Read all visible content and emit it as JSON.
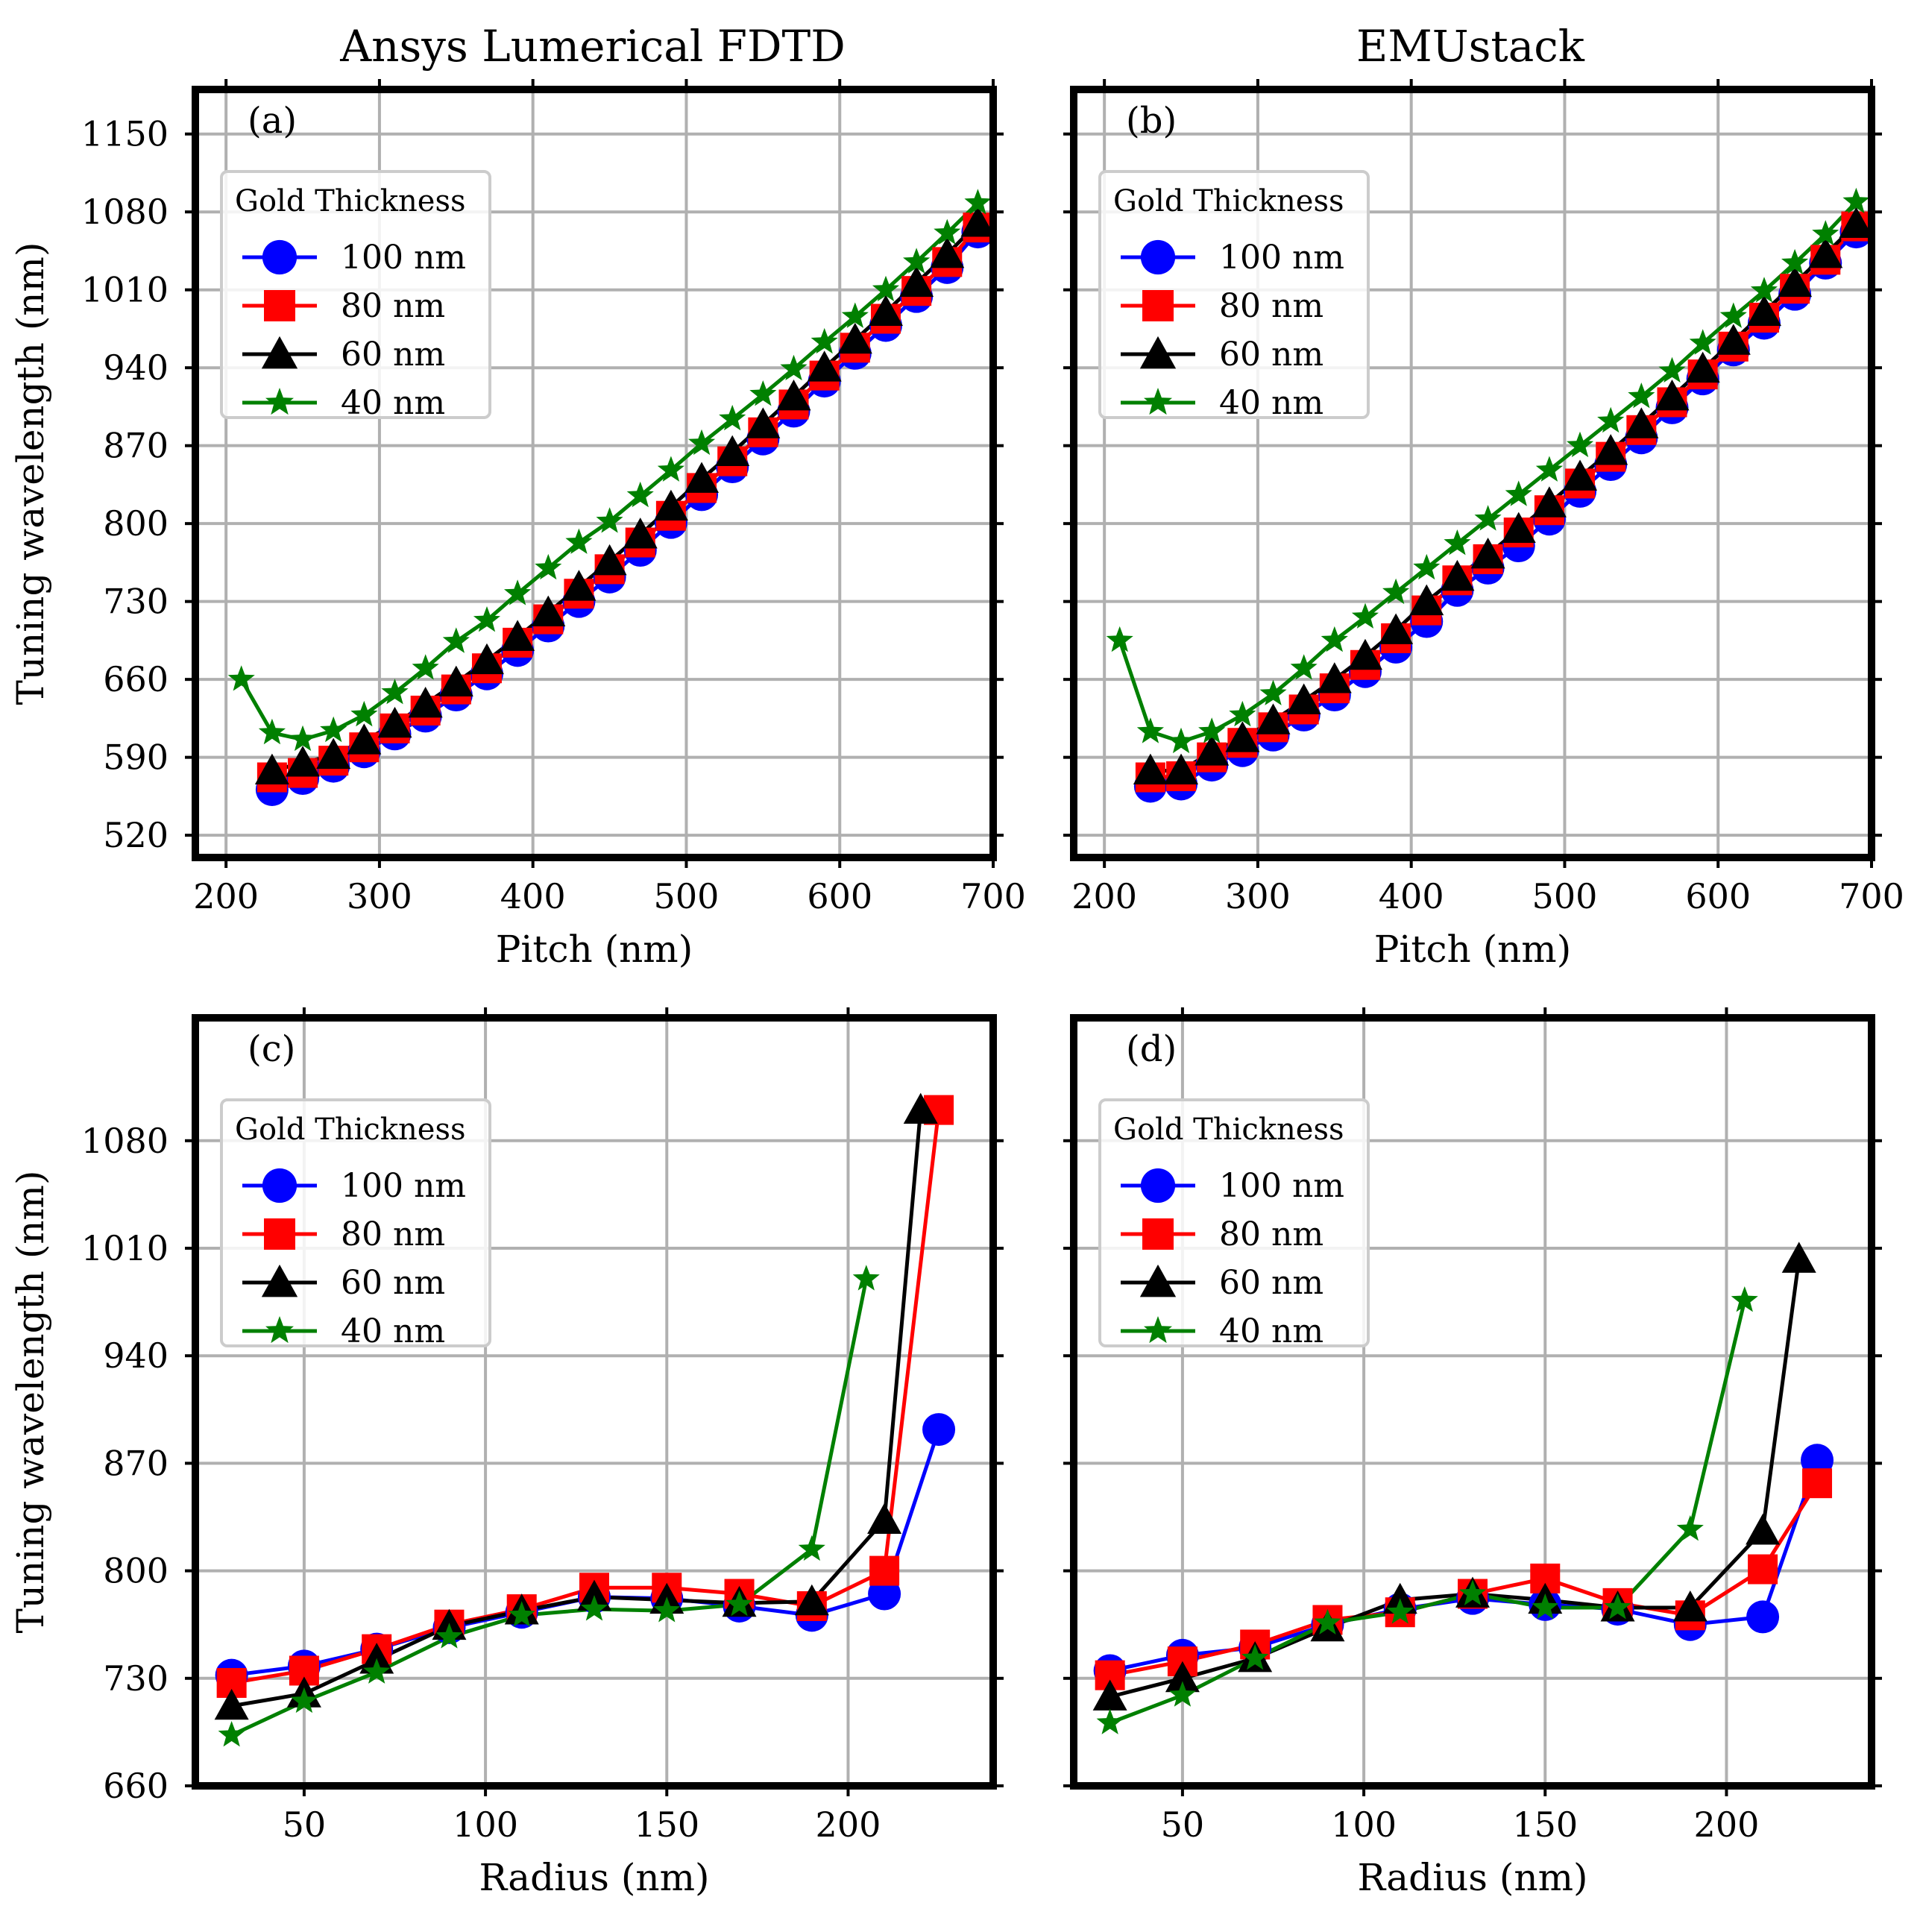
{
  "column_titles": [
    "Ansys Lumerical FDTD",
    "EMUstack"
  ],
  "legend": {
    "title": "Gold Thickness",
    "entries": [
      "100 nm",
      "80 nm",
      "60 nm",
      "40 nm"
    ]
  },
  "styles": {
    "colors": [
      "#0000ff",
      "#ff0000",
      "#000000",
      "#008000"
    ],
    "markers": [
      "circle",
      "square",
      "triangle",
      "star"
    ],
    "grid_color": "#b0b0b0"
  },
  "chart_data": [
    {
      "type": "line",
      "panel_label": "(a)",
      "xlabel": "Pitch (nm)",
      "ylabel": "Tuning wavelength (nm)",
      "xlim": [
        180,
        700
      ],
      "ylim": [
        500,
        1190
      ],
      "xticks": [
        200,
        300,
        400,
        500,
        600,
        700
      ],
      "yticks": [
        520,
        590,
        660,
        730,
        800,
        870,
        940,
        1010,
        1080,
        1150
      ],
      "xtick_labels": [
        "200",
        "300",
        "400",
        "500",
        "600",
        "700"
      ],
      "ytick_labels": [
        "520",
        "590",
        "660",
        "730",
        "800",
        "870",
        "940",
        "1010",
        "1080",
        "1150"
      ],
      "series": [
        {
          "name": "100 nm",
          "x": [
            230,
            250,
            270,
            290,
            310,
            330,
            350,
            370,
            390,
            410,
            430,
            450,
            470,
            490,
            510,
            530,
            550,
            570,
            590,
            610,
            630,
            650,
            670,
            690
          ],
          "y": [
            561,
            571,
            582,
            595,
            611,
            627,
            646,
            665,
            686,
            708,
            730,
            752,
            776,
            801,
            826,
            851,
            876,
            901,
            928,
            953,
            978,
            1004,
            1030,
            1062
          ]
        },
        {
          "name": "80 nm",
          "x": [
            230,
            250,
            270,
            290,
            310,
            330,
            350,
            370,
            390,
            410,
            430,
            450,
            470,
            490,
            510,
            530,
            550,
            570,
            590,
            610,
            630,
            650,
            670,
            690
          ],
          "y": [
            572,
            576,
            587,
            599,
            616,
            632,
            651,
            670,
            693,
            714,
            737,
            759,
            783,
            807,
            832,
            856,
            882,
            907,
            933,
            958,
            984,
            1009,
            1035,
            1066
          ]
        },
        {
          "name": "60 nm",
          "x": [
            230,
            250,
            270,
            290,
            310,
            330,
            350,
            370,
            390,
            410,
            430,
            450,
            470,
            490,
            510,
            530,
            550,
            570,
            590,
            610,
            630,
            650,
            670,
            690
          ],
          "y": [
            578,
            585,
            592,
            605,
            620,
            638,
            657,
            677,
            698,
            720,
            743,
            766,
            790,
            815,
            840,
            864,
            889,
            914,
            940,
            965,
            990,
            1016,
            1042,
            1070
          ]
        },
        {
          "name": "40 nm",
          "x": [
            210,
            230,
            250,
            270,
            290,
            310,
            330,
            350,
            370,
            390,
            410,
            430,
            450,
            470,
            490,
            510,
            530,
            550,
            570,
            590,
            610,
            630,
            650,
            670,
            690
          ],
          "y": [
            660,
            612,
            606,
            614,
            628,
            648,
            670,
            694,
            713,
            737,
            760,
            783,
            802,
            825,
            848,
            872,
            894,
            916,
            939,
            963,
            986,
            1010,
            1035,
            1061,
            1088
          ]
        }
      ]
    },
    {
      "type": "line",
      "panel_label": "(b)",
      "xlabel": "Pitch (nm)",
      "ylabel": "",
      "xlim": [
        180,
        700
      ],
      "ylim": [
        500,
        1190
      ],
      "xticks": [
        200,
        300,
        400,
        500,
        600,
        700
      ],
      "yticks": [
        520,
        590,
        660,
        730,
        800,
        870,
        940,
        1010,
        1080,
        1150
      ],
      "xtick_labels": [
        "200",
        "300",
        "400",
        "500",
        "600",
        "700"
      ],
      "ytick_labels": [],
      "series": [
        {
          "name": "100 nm",
          "x": [
            230,
            250,
            270,
            290,
            310,
            330,
            350,
            370,
            390,
            410,
            430,
            450,
            470,
            490,
            510,
            530,
            550,
            570,
            590,
            610,
            630,
            650,
            670,
            690
          ],
          "y": [
            564,
            566,
            583,
            596,
            610,
            628,
            646,
            667,
            689,
            712,
            740,
            760,
            780,
            804,
            829,
            853,
            877,
            904,
            930,
            956,
            980,
            1006,
            1034,
            1062
          ]
        },
        {
          "name": "80 nm",
          "x": [
            230,
            250,
            270,
            290,
            310,
            330,
            350,
            370,
            390,
            410,
            430,
            450,
            470,
            490,
            510,
            530,
            550,
            570,
            590,
            610,
            630,
            650,
            670,
            690
          ],
          "y": [
            572,
            573,
            590,
            603,
            617,
            633,
            652,
            673,
            697,
            722,
            749,
            768,
            792,
            812,
            836,
            860,
            884,
            909,
            934,
            959,
            985,
            1011,
            1037,
            1067
          ]
        },
        {
          "name": "60 nm",
          "x": [
            230,
            250,
            270,
            290,
            310,
            330,
            350,
            370,
            390,
            410,
            430,
            450,
            470,
            490,
            510,
            530,
            550,
            570,
            590,
            610,
            630,
            650,
            670,
            690
          ],
          "y": [
            578,
            578,
            595,
            607,
            623,
            641,
            660,
            681,
            704,
            730,
            752,
            772,
            795,
            818,
            842,
            865,
            889,
            914,
            939,
            964,
            990,
            1016,
            1042,
            1069
          ]
        },
        {
          "name": "40 nm",
          "x": [
            210,
            230,
            250,
            270,
            290,
            310,
            330,
            350,
            370,
            390,
            410,
            430,
            450,
            470,
            490,
            510,
            530,
            550,
            570,
            590,
            610,
            630,
            650,
            670,
            690
          ],
          "y": [
            695,
            613,
            604,
            613,
            628,
            647,
            670,
            695,
            716,
            738,
            760,
            782,
            804,
            826,
            848,
            870,
            892,
            914,
            937,
            962,
            986,
            1009,
            1034,
            1060,
            1089
          ]
        }
      ]
    },
    {
      "type": "line",
      "panel_label": "(c)",
      "xlabel": "Radius (nm)",
      "ylabel": "Tuning wavelength (nm)",
      "xlim": [
        20,
        240
      ],
      "ylim": [
        660,
        1160
      ],
      "xticks": [
        50,
        100,
        150,
        200
      ],
      "yticks": [
        660,
        730,
        800,
        870,
        940,
        1010,
        1080
      ],
      "xtick_labels": [
        "50",
        "100",
        "150",
        "200"
      ],
      "ytick_labels": [
        "660",
        "730",
        "800",
        "870",
        "940",
        "1010",
        "1080"
      ],
      "series": [
        {
          "name": "100 nm",
          "x": [
            30,
            50,
            70,
            90,
            110,
            130,
            150,
            170,
            190,
            210,
            225
          ],
          "y": [
            732,
            738,
            749,
            763,
            773,
            783,
            782,
            777,
            771,
            785,
            892
          ]
        },
        {
          "name": "80 nm",
          "x": [
            30,
            50,
            70,
            90,
            110,
            130,
            150,
            170,
            190,
            210,
            225
          ],
          "y": [
            727,
            735,
            749,
            765,
            775,
            789,
            789,
            785,
            777,
            800,
            1100
          ]
        },
        {
          "name": "60 nm",
          "x": [
            30,
            50,
            70,
            90,
            110,
            130,
            150,
            170,
            190,
            210,
            220
          ],
          "y": [
            712,
            720,
            742,
            764,
            774,
            783,
            781,
            779,
            780,
            833,
            1100
          ]
        },
        {
          "name": "40 nm",
          "x": [
            30,
            50,
            70,
            90,
            110,
            130,
            150,
            170,
            190,
            205
          ],
          "y": [
            693,
            715,
            734,
            757,
            771,
            775,
            774,
            778,
            814,
            990
          ]
        }
      ]
    },
    {
      "type": "line",
      "panel_label": "(d)",
      "xlabel": "Radius (nm)",
      "ylabel": "",
      "xlim": [
        20,
        240
      ],
      "ylim": [
        660,
        1160
      ],
      "xticks": [
        50,
        100,
        150,
        200
      ],
      "yticks": [
        660,
        730,
        800,
        870,
        940,
        1010,
        1080
      ],
      "xtick_labels": [
        "50",
        "100",
        "150",
        "200"
      ],
      "ytick_labels": [],
      "series": [
        {
          "name": "100 nm",
          "x": [
            30,
            50,
            70,
            90,
            110,
            130,
            150,
            170,
            190,
            210,
            225
          ],
          "y": [
            735,
            745,
            750,
            765,
            775,
            782,
            778,
            775,
            765,
            770,
            872
          ]
        },
        {
          "name": "80 nm",
          "x": [
            30,
            50,
            70,
            90,
            110,
            130,
            150,
            170,
            190,
            210,
            225
          ],
          "y": [
            732,
            741,
            752,
            768,
            773,
            785,
            795,
            779,
            771,
            801,
            857
          ]
        },
        {
          "name": "60 nm",
          "x": [
            30,
            50,
            70,
            90,
            110,
            130,
            150,
            170,
            190,
            210,
            220
          ],
          "y": [
            718,
            730,
            743,
            763,
            781,
            785,
            781,
            776,
            776,
            826,
            1003
          ]
        },
        {
          "name": "40 nm",
          "x": [
            30,
            50,
            70,
            90,
            110,
            130,
            150,
            170,
            190,
            205
          ],
          "y": [
            701,
            719,
            743,
            766,
            773,
            785,
            776,
            776,
            827,
            976
          ]
        }
      ]
    }
  ]
}
